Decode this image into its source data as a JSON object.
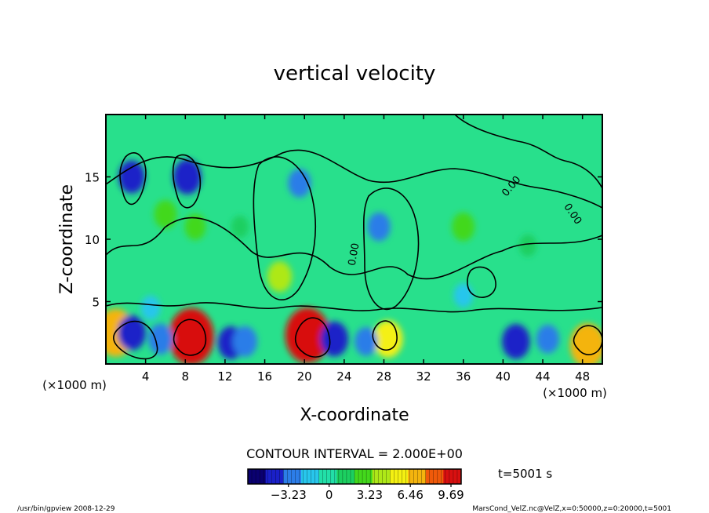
{
  "chart_data": {
    "type": "heatmap",
    "title": "vertical velocity",
    "xlabel": "X-coordinate",
    "ylabel": "Z-coordinate",
    "x_unit": "(×1000 m)",
    "z_unit": "(×1000 m)",
    "xlim": [
      0,
      50
    ],
    "ylim": [
      0,
      20
    ],
    "x_ticks": [
      4,
      8,
      12,
      16,
      20,
      24,
      28,
      32,
      36,
      40,
      44,
      48
    ],
    "y_ticks": [
      5,
      10,
      15
    ],
    "contour_interval_text": "CONTOUR INTERVAL = 2.000E+00",
    "contour_label": "0.00",
    "time_text": "t=5001 s",
    "colorbar": {
      "ticks": [
        "−3.23",
        "0",
        "3.23",
        "6.46",
        "9.69"
      ],
      "tick_values": [
        -3.23,
        0,
        3.23,
        6.46,
        9.69
      ],
      "range": [
        -6.46,
        10.5
      ],
      "colors": [
        "#0a0070",
        "#1a20c8",
        "#2c7de8",
        "#28c6ec",
        "#22dfa8",
        "#1ccf60",
        "#43d81c",
        "#aee818",
        "#f4f012",
        "#f4b40e",
        "#f05a0a",
        "#d81010"
      ]
    },
    "background_color": "#28e08c",
    "field_cells": [
      {
        "x": 1,
        "z": 2.5,
        "value": 7.5
      },
      {
        "x": 8.6,
        "z": 2.2,
        "value": 9.5
      },
      {
        "x": 20.3,
        "z": 2.3,
        "value": 9.2
      },
      {
        "x": 28.4,
        "z": 2.0,
        "value": 5.0
      },
      {
        "x": 48.5,
        "z": 1.5,
        "value": 6.5
      },
      {
        "x": 2.6,
        "z": 2.5,
        "value": -4.5
      },
      {
        "x": 5.5,
        "z": 2.0,
        "value": -3.5
      },
      {
        "x": 12.6,
        "z": 1.7,
        "value": -4.0
      },
      {
        "x": 14.0,
        "z": 1.8,
        "value": -3.5
      },
      {
        "x": 23.0,
        "z": 2.0,
        "value": -4.5
      },
      {
        "x": 26.2,
        "z": 1.8,
        "value": -3.0
      },
      {
        "x": 41.3,
        "z": 1.8,
        "value": -4.5
      },
      {
        "x": 44.5,
        "z": 2.0,
        "value": -3.0
      },
      {
        "x": 2.6,
        "z": 15.0,
        "value": -4.0
      },
      {
        "x": 8.2,
        "z": 15.0,
        "value": -4.5
      },
      {
        "x": 19.5,
        "z": 14.5,
        "value": -3.0
      },
      {
        "x": 27.5,
        "z": 11.0,
        "value": -3.0
      },
      {
        "x": 4.5,
        "z": 4.5,
        "value": -2.0
      },
      {
        "x": 17.5,
        "z": 7.0,
        "value": 3.5
      },
      {
        "x": 9.0,
        "z": 11.0,
        "value": 2.5
      },
      {
        "x": 13.5,
        "z": 11.0,
        "value": 1.5
      },
      {
        "x": 6.0,
        "z": 12.0,
        "value": 3.0
      },
      {
        "x": 36.0,
        "z": 5.5,
        "value": -2.0
      },
      {
        "x": 42.5,
        "z": 9.5,
        "value": 1.5
      },
      {
        "x": 36.0,
        "z": 11.0,
        "value": 3.0
      }
    ]
  },
  "footer": {
    "left": "/usr/bin/gpview   2008-12-29",
    "right": "MarsCond_VelZ.nc@VelZ,x=0:50000,z=0:20000,t=5001"
  }
}
